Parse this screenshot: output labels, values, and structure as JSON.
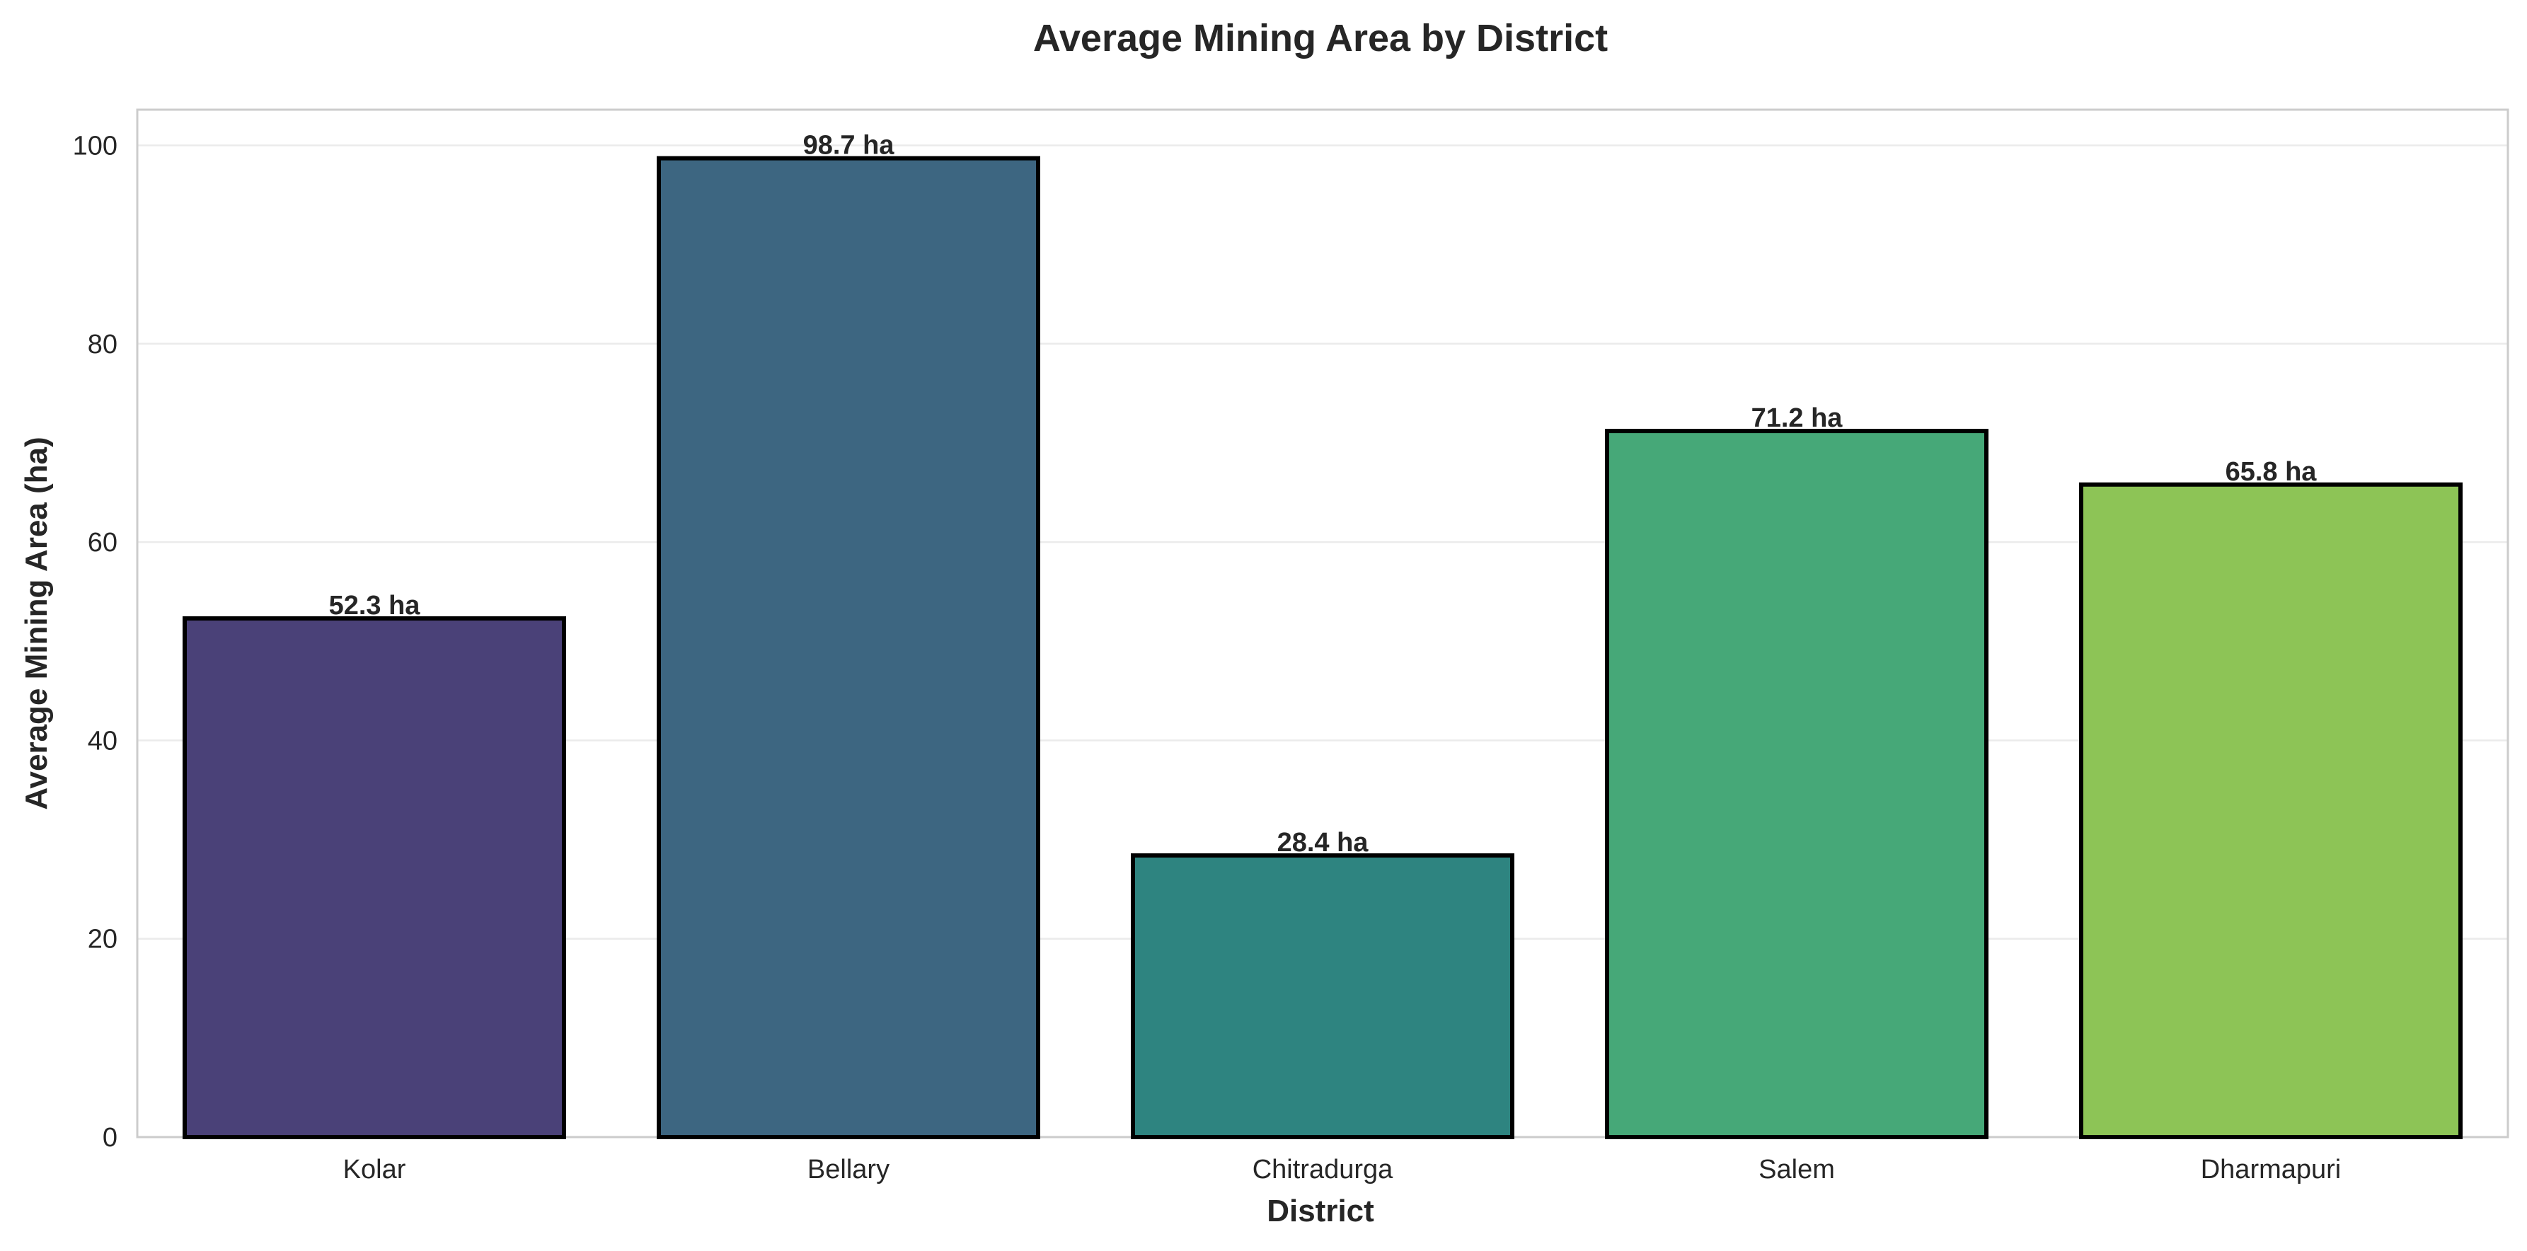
{
  "chart_data": {
    "type": "bar",
    "title": "Average Mining Area by District",
    "xlabel": "District",
    "ylabel": "Average Mining Area (ha)",
    "categories": [
      "Kolar",
      "Bellary",
      "Chitradurga",
      "Salem",
      "Dharmapuri"
    ],
    "values": [
      52.3,
      98.7,
      28.4,
      71.2,
      65.8
    ],
    "data_labels": [
      "52.3 ha",
      "98.7 ha",
      "28.4 ha",
      "71.2 ha",
      "65.8 ha"
    ],
    "colors": [
      "#4a4178",
      "#3d6681",
      "#2e8480",
      "#46a878",
      "#8dc456"
    ],
    "ylim": [
      0,
      103.6
    ],
    "yticks": [
      0,
      20,
      40,
      60,
      80,
      100
    ],
    "grid": "y",
    "legend": "none"
  }
}
